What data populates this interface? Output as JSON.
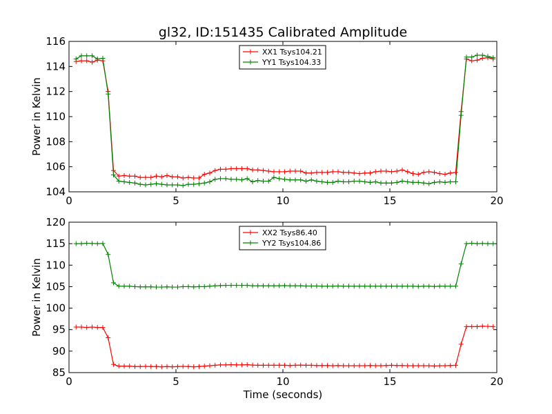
{
  "figure_title": "gl32, ID:151435 Calibrated Amplitude",
  "chart_data": [
    {
      "type": "line",
      "title": "gl32, ID:151435 Calibrated Amplitude",
      "xlabel": "",
      "ylabel": "Power in Kelvin",
      "xlim": [
        0,
        20
      ],
      "ylim": [
        104,
        116
      ],
      "xticks": [
        0,
        5,
        10,
        15,
        20
      ],
      "yticks": [
        104,
        106,
        108,
        110,
        112,
        114,
        116
      ],
      "legend_position": "upper-center",
      "x": [
        0.33,
        0.58,
        0.83,
        1.08,
        1.33,
        1.58,
        1.83,
        2.08,
        2.33,
        2.58,
        2.83,
        3.08,
        3.33,
        3.58,
        3.83,
        4.08,
        4.33,
        4.58,
        4.83,
        5.08,
        5.33,
        5.58,
        5.83,
        6.08,
        6.33,
        6.58,
        6.83,
        7.08,
        7.33,
        7.58,
        7.83,
        8.08,
        8.33,
        8.58,
        8.83,
        9.08,
        9.33,
        9.58,
        9.83,
        10.08,
        10.33,
        10.58,
        10.83,
        11.08,
        11.33,
        11.58,
        11.83,
        12.08,
        12.33,
        12.58,
        12.83,
        13.08,
        13.33,
        13.58,
        13.83,
        14.08,
        14.33,
        14.58,
        14.83,
        15.08,
        15.33,
        15.58,
        15.83,
        16.08,
        16.33,
        16.58,
        16.83,
        17.08,
        17.33,
        17.58,
        17.83,
        18.08,
        18.33,
        18.58,
        18.83,
        19.08,
        19.33,
        19.58,
        19.83
      ],
      "series": [
        {
          "name": "XX1 Tsys104.21",
          "color": "#ff0000",
          "values": [
            114.4,
            114.45,
            114.45,
            114.35,
            114.5,
            114.45,
            112.0,
            105.7,
            105.25,
            105.3,
            105.25,
            105.25,
            105.15,
            105.15,
            105.15,
            105.25,
            105.2,
            105.3,
            105.2,
            105.2,
            105.1,
            105.15,
            105.1,
            105.1,
            105.4,
            105.5,
            105.7,
            105.8,
            105.8,
            105.85,
            105.85,
            105.85,
            105.85,
            105.75,
            105.75,
            105.7,
            105.65,
            105.6,
            105.6,
            105.6,
            105.65,
            105.65,
            105.65,
            105.5,
            105.5,
            105.55,
            105.55,
            105.55,
            105.6,
            105.6,
            105.55,
            105.55,
            105.5,
            105.45,
            105.5,
            105.5,
            105.6,
            105.65,
            105.65,
            105.6,
            105.65,
            105.75,
            105.6,
            105.45,
            105.4,
            105.55,
            105.6,
            105.55,
            105.45,
            105.4,
            105.5,
            105.55,
            110.4,
            114.6,
            114.45,
            114.5,
            114.65,
            114.7,
            114.6
          ]
        },
        {
          "name": "YY1 Tsys104.33",
          "color": "#008000",
          "values": [
            114.6,
            114.85,
            114.85,
            114.85,
            114.6,
            114.65,
            111.8,
            105.35,
            104.85,
            104.8,
            104.75,
            104.7,
            104.6,
            104.55,
            104.6,
            104.65,
            104.6,
            104.55,
            104.55,
            104.55,
            104.5,
            104.6,
            104.6,
            104.65,
            104.7,
            104.8,
            105.0,
            105.05,
            105.05,
            105.0,
            105.0,
            104.95,
            105.05,
            104.8,
            104.9,
            104.85,
            104.85,
            105.15,
            105.05,
            105.0,
            104.95,
            104.95,
            104.95,
            104.85,
            104.95,
            104.85,
            104.8,
            104.75,
            104.75,
            104.85,
            104.8,
            104.8,
            104.85,
            104.85,
            104.8,
            104.75,
            104.8,
            104.7,
            104.7,
            104.7,
            104.75,
            104.85,
            104.8,
            104.75,
            104.75,
            104.7,
            104.65,
            104.75,
            104.8,
            104.75,
            104.8,
            104.8,
            110.1,
            114.75,
            114.75,
            114.9,
            114.9,
            114.8,
            114.7
          ]
        }
      ]
    },
    {
      "type": "line",
      "title": "",
      "xlabel": "Time (seconds)",
      "ylabel": "Power in Kelvin",
      "xlim": [
        0,
        20
      ],
      "ylim": [
        85,
        120
      ],
      "xticks": [
        0,
        5,
        10,
        15,
        20
      ],
      "yticks": [
        85,
        90,
        95,
        100,
        105,
        110,
        115,
        120
      ],
      "legend_position": "upper-center",
      "x": [
        0.33,
        0.58,
        0.83,
        1.08,
        1.33,
        1.58,
        1.83,
        2.08,
        2.33,
        2.58,
        2.83,
        3.08,
        3.33,
        3.58,
        3.83,
        4.08,
        4.33,
        4.58,
        4.83,
        5.08,
        5.33,
        5.58,
        5.83,
        6.08,
        6.33,
        6.58,
        6.83,
        7.08,
        7.33,
        7.58,
        7.83,
        8.08,
        8.33,
        8.58,
        8.83,
        9.08,
        9.33,
        9.58,
        9.83,
        10.08,
        10.33,
        10.58,
        10.83,
        11.08,
        11.33,
        11.58,
        11.83,
        12.08,
        12.33,
        12.58,
        12.83,
        13.08,
        13.33,
        13.58,
        13.83,
        14.08,
        14.33,
        14.58,
        14.83,
        15.08,
        15.33,
        15.58,
        15.83,
        16.08,
        16.33,
        16.58,
        16.83,
        17.08,
        17.33,
        17.58,
        17.83,
        18.08,
        18.33,
        18.58,
        18.83,
        19.08,
        19.33,
        19.58,
        19.83
      ],
      "series": [
        {
          "name": "XX2 Tsys86.40",
          "color": "#ff0000",
          "values": [
            95.6,
            95.6,
            95.5,
            95.6,
            95.5,
            95.5,
            93.1,
            86.9,
            86.5,
            86.5,
            86.5,
            86.4,
            86.4,
            86.45,
            86.4,
            86.4,
            86.35,
            86.4,
            86.35,
            86.4,
            86.45,
            86.4,
            86.35,
            86.4,
            86.5,
            86.6,
            86.7,
            86.8,
            86.8,
            86.85,
            86.8,
            86.8,
            86.85,
            86.75,
            86.7,
            86.7,
            86.7,
            86.7,
            86.7,
            86.7,
            86.65,
            86.7,
            86.75,
            86.7,
            86.7,
            86.65,
            86.65,
            86.65,
            86.6,
            86.65,
            86.6,
            86.6,
            86.6,
            86.6,
            86.6,
            86.65,
            86.6,
            86.6,
            86.65,
            86.7,
            86.65,
            86.65,
            86.6,
            86.6,
            86.6,
            86.6,
            86.6,
            86.55,
            86.6,
            86.6,
            86.65,
            86.7,
            91.6,
            95.7,
            95.7,
            95.7,
            95.8,
            95.75,
            95.7
          ]
        },
        {
          "name": "YY2 Tsys104.86",
          "color": "#008000",
          "values": [
            115.0,
            115.0,
            115.1,
            115.05,
            115.0,
            115.05,
            112.5,
            105.9,
            105.1,
            105.1,
            105.1,
            105.0,
            104.95,
            104.95,
            104.95,
            104.9,
            104.9,
            104.95,
            104.9,
            104.9,
            105.0,
            105.0,
            104.95,
            105.0,
            105.0,
            105.1,
            105.2,
            105.25,
            105.3,
            105.3,
            105.3,
            105.3,
            105.3,
            105.2,
            105.2,
            105.2,
            105.2,
            105.2,
            105.2,
            105.25,
            105.2,
            105.2,
            105.2,
            105.15,
            105.15,
            105.15,
            105.1,
            105.1,
            105.1,
            105.15,
            105.1,
            105.1,
            105.1,
            105.1,
            105.1,
            105.1,
            105.1,
            105.1,
            105.1,
            105.1,
            105.1,
            105.1,
            105.1,
            105.1,
            105.05,
            105.1,
            105.1,
            105.05,
            105.1,
            105.1,
            105.1,
            105.1,
            110.3,
            115.0,
            115.1,
            115.0,
            115.05,
            115.0,
            115.0
          ]
        }
      ]
    }
  ]
}
